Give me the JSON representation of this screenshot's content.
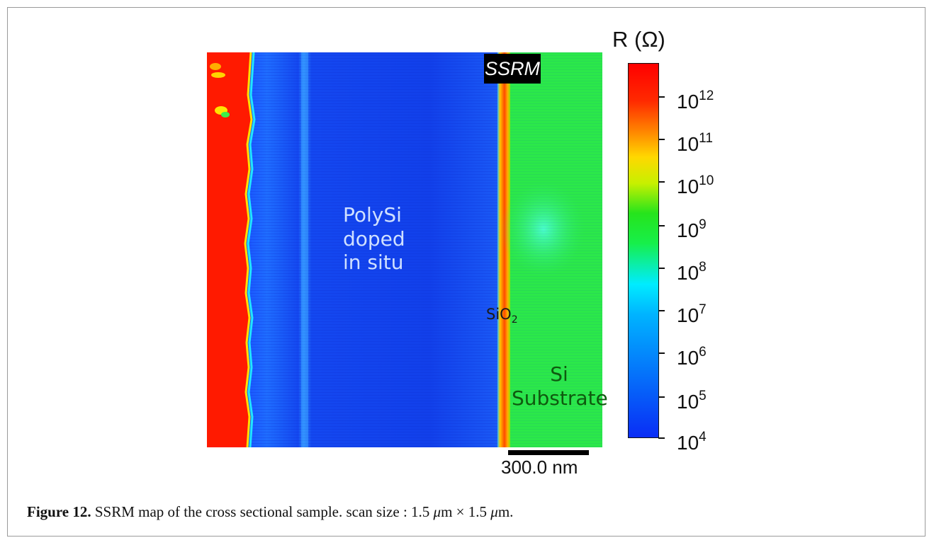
{
  "figure": {
    "overlay_tag": "SSRM",
    "regions": {
      "polysi": [
        "PolySi",
        "doped",
        "in situ"
      ],
      "oxide_main": "SiO",
      "oxide_sub": "2",
      "substrate": [
        "Si",
        "Substrate"
      ]
    },
    "scalebar": "300.0 nm",
    "colorbar": {
      "title": "R (Ω)",
      "base": "10",
      "exponents": [
        "12",
        "11",
        "10",
        "9",
        "8",
        "7",
        "6",
        "5",
        "4"
      ],
      "scale": "log",
      "colors": [
        "#0a2df5",
        "#00b4ff",
        "#00ecff",
        "#17ef4a",
        "#26e41c",
        "#c7f000",
        "#ffd800",
        "#ff8400",
        "#ff2a00",
        "#ff0000"
      ]
    }
  },
  "caption": {
    "label": "Figure 12.",
    "text_1": " SSRM map of the cross sectional sample. scan size : 1.5 ",
    "mu_1": "μ",
    "text_2": "m  ×  1.5 ",
    "mu_2": "μ",
    "text_3": "m."
  }
}
